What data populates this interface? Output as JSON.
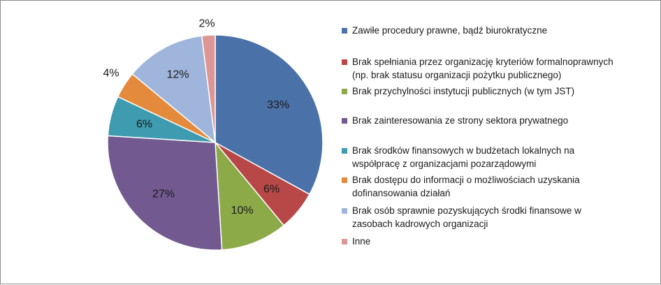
{
  "chart_data": {
    "type": "pie",
    "start_angle_deg": 0,
    "direction": "clockwise",
    "legend_position": "right",
    "slices": [
      {
        "label": "Zawiłe procedury prawne, bądź biurokratyczne",
        "value": 33,
        "value_label": "33%",
        "color": "#4a72a8"
      },
      {
        "label": "Brak spełniania przez organizację kryteriów formalnoprawnych\n(np. brak statusu organizacji pożytku publicznego)",
        "value": 6,
        "value_label": "6%",
        "color": "#b84848"
      },
      {
        "label": "Brak przychylności instytucji publicznych (w tym JST)",
        "value": 10,
        "value_label": "10%",
        "color": "#8daa48"
      },
      {
        "label": " Brak zainteresowania ze strony sektora prywatnego",
        "value": 27,
        "value_label": "27%",
        "color": "#72598f"
      },
      {
        "label": "Brak środków finansowych w budżetach lokalnych na\nwspółpracę z organizacjami pozarządowymi",
        "value": 6,
        "value_label": "6%",
        "color": "#3f9bb0"
      },
      {
        "label": "Brak dostępu do informacji o możliwościach uzyskania\ndofinansowania działań",
        "value": 4,
        "value_label": "4%",
        "color": "#e48a3c"
      },
      {
        "label": "Brak osób sprawnie pozyskujących środki finansowe w\nzasobach kadrowych organizacji",
        "value": 12,
        "value_label": "12%",
        "color": "#9fb5db"
      },
      {
        "label": "Inne",
        "value": 2,
        "value_label": "2%",
        "color": "#dc9694"
      }
    ]
  }
}
